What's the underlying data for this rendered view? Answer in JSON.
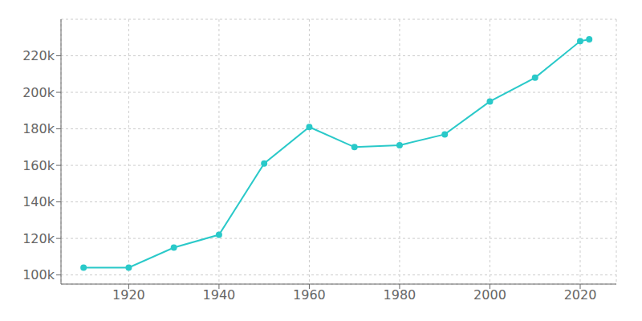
{
  "chart_data": {
    "type": "line",
    "x": [
      1910,
      1920,
      1930,
      1940,
      1950,
      1960,
      1970,
      1980,
      1990,
      2000,
      2010,
      2020,
      2022
    ],
    "values": [
      104000,
      104000,
      115000,
      122000,
      161000,
      181000,
      170000,
      171000,
      177000,
      195000,
      208000,
      228000,
      229000
    ],
    "color": "#2ac9c9",
    "marker": "circle",
    "xlim": [
      1905,
      2028
    ],
    "xticks": [
      1920,
      1940,
      1960,
      1980,
      2000,
      2020
    ],
    "ylim": [
      95000,
      240000
    ],
    "yticks": [
      {
        "value": 100000,
        "label": "100k"
      },
      {
        "value": 120000,
        "label": "120k"
      },
      {
        "value": 140000,
        "label": "140k"
      },
      {
        "value": 160000,
        "label": "160k"
      },
      {
        "value": 180000,
        "label": "180k"
      },
      {
        "value": 200000,
        "label": "200k"
      },
      {
        "value": 220000,
        "label": "220k"
      }
    ],
    "grid": true
  }
}
